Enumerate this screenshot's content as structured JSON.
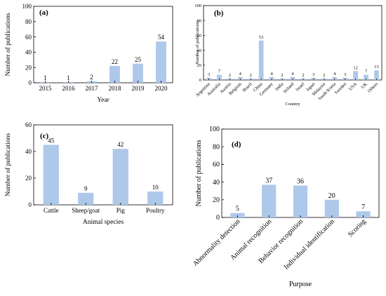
{
  "colors": {
    "bar": "#aec8ea",
    "axis": "#000000",
    "background": "#ffffff"
  },
  "chart_data": [
    {
      "panel_label": "(a)",
      "type": "bar",
      "categories": [
        "2015",
        "2016",
        "2017",
        "2018",
        "2019",
        "2020"
      ],
      "values": [
        1,
        1,
        2,
        22,
        25,
        54
      ],
      "xlabel": "Year",
      "ylabel": "Number of publications",
      "ylim": [
        0,
        100
      ],
      "yticks": [
        0,
        20,
        40,
        60,
        80,
        100
      ],
      "grid": false
    },
    {
      "panel_label": "(b)",
      "type": "bar",
      "categories": [
        "Argentina",
        "Australia",
        "Austria",
        "Belgium",
        "Brazil",
        "China",
        "Germany",
        "India",
        "Ireland",
        "Israel",
        "Japan",
        "Malaysia",
        "South Korea",
        "Sweden",
        "USA",
        "UK",
        "Others"
      ],
      "values": [
        3,
        7,
        2,
        4,
        2,
        53,
        4,
        2,
        4,
        2,
        3,
        2,
        4,
        3,
        12,
        7,
        13
      ],
      "xlabel": "Country",
      "ylabel": "Number of publications",
      "ylim": [
        0,
        100
      ],
      "yticks": [
        0,
        20,
        40,
        60,
        80,
        100
      ],
      "grid": false
    },
    {
      "panel_label": "(c)",
      "type": "bar",
      "categories": [
        "Cattle",
        "Sheep/goat",
        "Pig",
        "Poultry"
      ],
      "values": [
        45,
        9,
        42,
        10
      ],
      "xlabel": "Animal species",
      "ylabel": "Number of publications",
      "ylim": [
        0,
        60
      ],
      "yticks": [
        0,
        20,
        40,
        60
      ],
      "grid": false
    },
    {
      "panel_label": "(d)",
      "type": "bar",
      "categories": [
        "Abnormality detection",
        "Animal recognition",
        "Behavior recognition",
        "Individual identification",
        "Scoring"
      ],
      "values": [
        5,
        37,
        36,
        20,
        7
      ],
      "xlabel": "Purpose",
      "ylabel": "Number of publications",
      "ylim": [
        0,
        100
      ],
      "yticks": [
        0,
        20,
        40,
        60,
        80,
        100
      ],
      "grid": false
    }
  ]
}
